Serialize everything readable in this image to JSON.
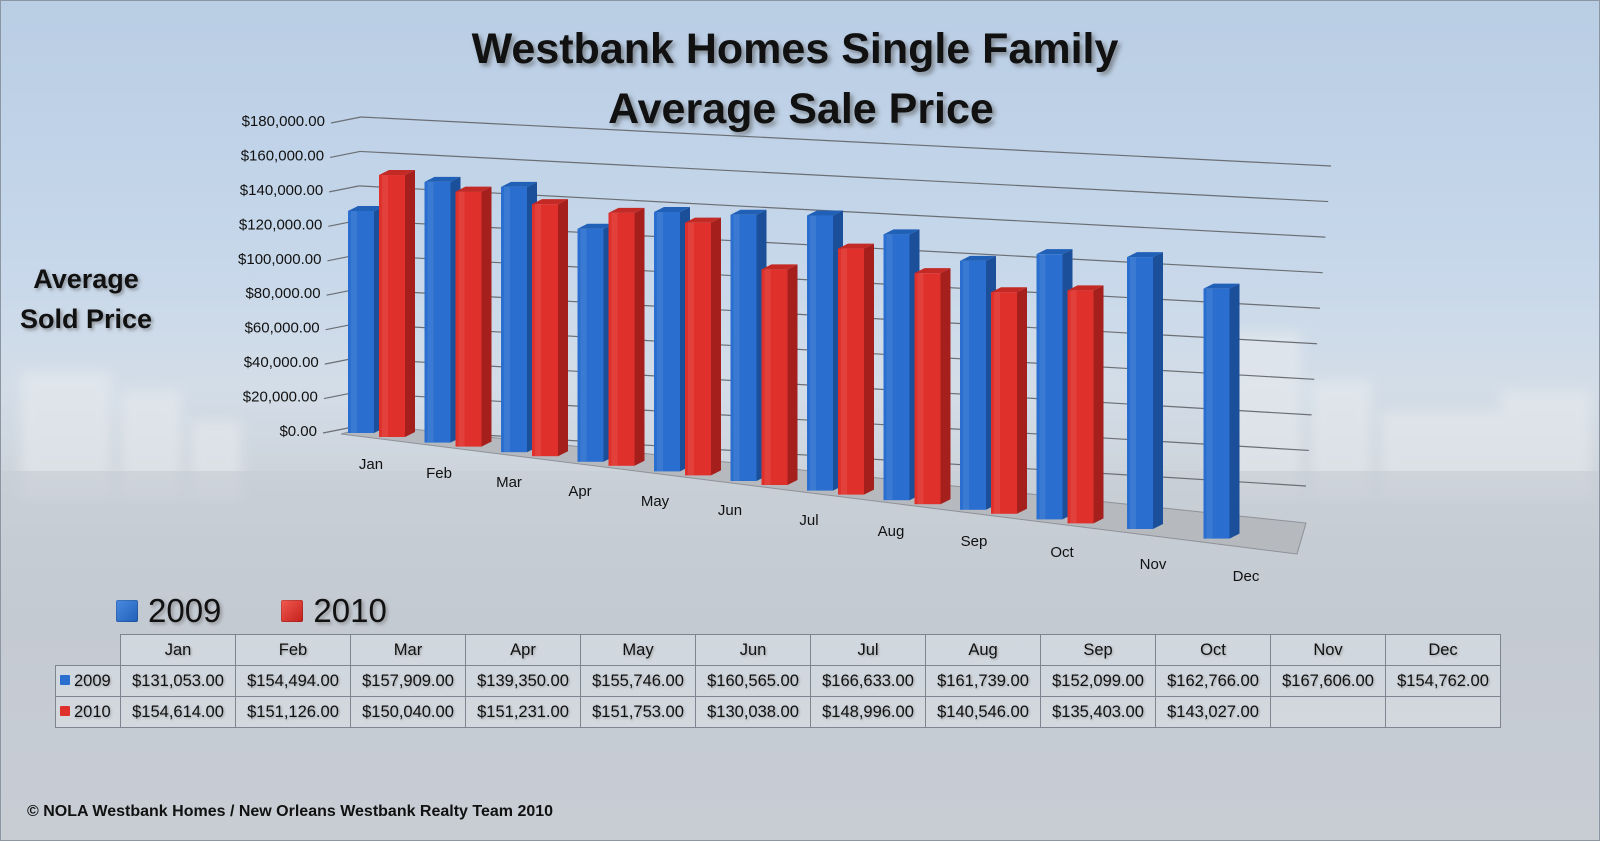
{
  "title": {
    "line1": "Westbank Homes Single Family",
    "line2": "Average Sale Price"
  },
  "y_axis_label": {
    "line1": "Average",
    "line2": "Sold Price"
  },
  "legend": [
    {
      "label": "2009",
      "color": "#2a6fcf"
    },
    {
      "label": "2010",
      "color": "#e0302b"
    }
  ],
  "table": {
    "headers": [
      "Jan",
      "Feb",
      "Mar",
      "Apr",
      "May",
      "Jun",
      "Jul",
      "Aug",
      "Sep",
      "Oct",
      "Nov",
      "Dec"
    ],
    "rows": [
      {
        "label": "2009",
        "color": "#2a6fcf",
        "values": [
          "$131,053.00",
          "$154,494.00",
          "$157,909.00",
          "$139,350.00",
          "$155,746.00",
          "$160,565.00",
          "$166,633.00",
          "$161,739.00",
          "$152,099.00",
          "$162,766.00",
          "$167,606.00",
          "$154,762.00"
        ]
      },
      {
        "label": "2010",
        "color": "#e0302b",
        "values": [
          "$154,614.00",
          "$151,126.00",
          "$150,040.00",
          "$151,231.00",
          "$151,753.00",
          "$130,038.00",
          "$148,996.00",
          "$140,546.00",
          "$135,403.00",
          "$143,027.00",
          "",
          ""
        ]
      }
    ]
  },
  "footer": "© NOLA Westbank Homes / New Orleans Westbank Realty Team 2010",
  "chart_data": {
    "type": "bar",
    "title": "Westbank Homes Single Family Average Sale Price",
    "xlabel": "",
    "ylabel": "Average Sold Price",
    "ylim": [
      0,
      180000
    ],
    "y_ticks": [
      "$0.00",
      "$20,000.00",
      "$40,000.00",
      "$60,000.00",
      "$80,000.00",
      "$100,000.00",
      "$120,000.00",
      "$140,000.00",
      "$160,000.00",
      "$180,000.00"
    ],
    "grid": true,
    "legend_position": "bottom-left",
    "style": "3d-clustered-column",
    "categories": [
      "Jan",
      "Feb",
      "Mar",
      "Apr",
      "May",
      "Jun",
      "Jul",
      "Aug",
      "Sep",
      "Oct",
      "Nov",
      "Dec"
    ],
    "series": [
      {
        "name": "2009",
        "color": "#2a6fcf",
        "values": [
          131053,
          154494,
          157909,
          139350,
          155746,
          160565,
          166633,
          161739,
          152099,
          162766,
          167606,
          154762
        ]
      },
      {
        "name": "2010",
        "color": "#e0302b",
        "values": [
          154614,
          151126,
          150040,
          151231,
          151753,
          130038,
          148996,
          140546,
          135403,
          143027,
          null,
          null
        ]
      }
    ]
  }
}
